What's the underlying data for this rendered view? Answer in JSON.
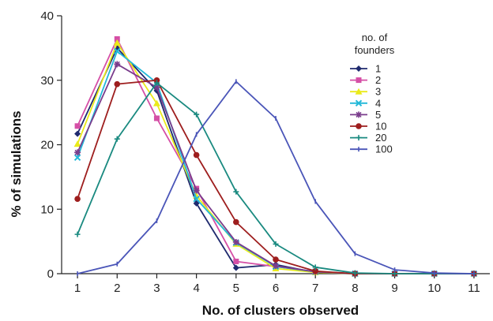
{
  "chart_data": {
    "type": "line",
    "xlabel": "No. of clusters observed",
    "ylabel": "% of simulations",
    "x": [
      1,
      2,
      3,
      4,
      5,
      6,
      7,
      8,
      9,
      10,
      11
    ],
    "xlim": [
      0.6,
      11.4
    ],
    "ylim": [
      0,
      40
    ],
    "yticks": [
      0,
      10,
      20,
      30,
      40
    ],
    "grid": false,
    "legend_title": "no. of founders",
    "legend_position": "top-right",
    "series": [
      {
        "name": "1",
        "color": "#1f2a6e",
        "marker": "diamond",
        "values": [
          21.7,
          35.0,
          28.4,
          10.9,
          0.9,
          1.4,
          0.2,
          0,
          0,
          0,
          0
        ]
      },
      {
        "name": "2",
        "color": "#d54fa6",
        "marker": "square",
        "values": [
          22.9,
          36.4,
          24.1,
          13.2,
          1.9,
          1.1,
          0.3,
          0,
          0,
          0,
          0
        ]
      },
      {
        "name": "3",
        "color": "#eaea1a",
        "marker": "triangle",
        "values": [
          20.1,
          35.8,
          26.4,
          12.1,
          4.6,
          0.8,
          0.2,
          0,
          0,
          0,
          0
        ]
      },
      {
        "name": "4",
        "color": "#22b8d8",
        "marker": "x",
        "values": [
          18.0,
          34.5,
          29.6,
          11.6,
          4.8,
          1.1,
          0.3,
          0,
          0,
          0,
          0
        ]
      },
      {
        "name": "5",
        "color": "#7a3d8c",
        "marker": "star",
        "values": [
          18.8,
          32.5,
          28.9,
          12.9,
          4.9,
          1.2,
          0.3,
          0,
          0,
          0,
          0
        ]
      },
      {
        "name": "10",
        "color": "#9e1e1e",
        "marker": "circle",
        "values": [
          11.6,
          29.4,
          30.0,
          18.4,
          8.0,
          2.2,
          0.4,
          0,
          0,
          0,
          0
        ]
      },
      {
        "name": "20",
        "color": "#1a8a80",
        "marker": "plus",
        "values": [
          6.1,
          20.9,
          29.6,
          24.7,
          12.7,
          4.6,
          1.0,
          0.1,
          0,
          0,
          0
        ]
      },
      {
        "name": "100",
        "color": "#4a55b8",
        "marker": "tick",
        "values": [
          0.0,
          1.5,
          8.2,
          21.6,
          29.8,
          24.1,
          11.2,
          3.1,
          0.6,
          0.1,
          0
        ]
      }
    ]
  }
}
